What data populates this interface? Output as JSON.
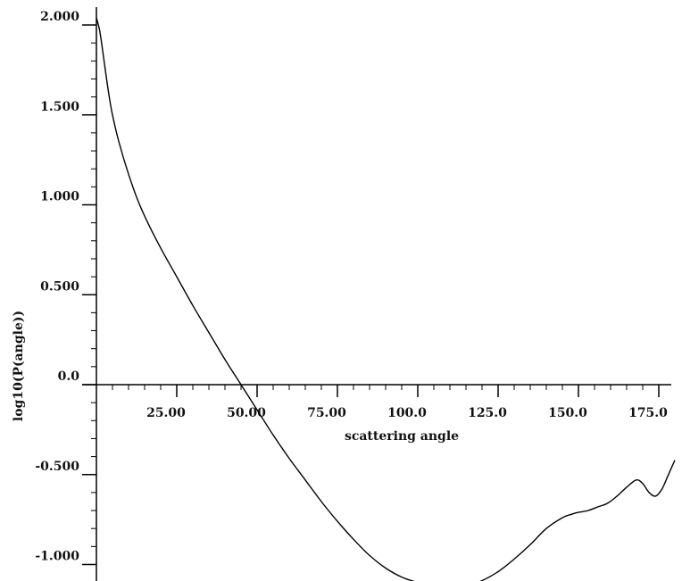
{
  "chart_data": {
    "type": "line",
    "title": "",
    "xlabel": "scattering angle",
    "ylabel": "log10(P(angle))",
    "xlim": [
      0,
      180
    ],
    "ylim": [
      -1.1,
      2.05
    ],
    "xticks": [
      {
        "value": 25,
        "label": "25.00"
      },
      {
        "value": 50,
        "label": "50.00"
      },
      {
        "value": 75,
        "label": "75.00"
      },
      {
        "value": 100,
        "label": "100.0"
      },
      {
        "value": 125,
        "label": "125.0"
      },
      {
        "value": 150,
        "label": "150.0"
      },
      {
        "value": 175,
        "label": "175.0"
      }
    ],
    "yticks": [
      {
        "value": 2.0,
        "label": "2.000"
      },
      {
        "value": 1.5,
        "label": "1.500"
      },
      {
        "value": 1.0,
        "label": "1.000"
      },
      {
        "value": 0.5,
        "label": "0.500"
      },
      {
        "value": 0.0,
        "label": "0.0"
      },
      {
        "value": -0.5,
        "label": "-0.500"
      },
      {
        "value": -1.0,
        "label": "-1.000"
      }
    ],
    "x_minor_step": 5,
    "y_minor_step": 0.1,
    "grid": false,
    "series": [
      {
        "color": "#000000",
        "x": [
          0,
          1,
          2,
          3,
          4,
          5,
          7,
          10,
          13,
          16,
          20,
          25,
          30,
          35,
          40,
          45,
          50,
          55,
          60,
          65,
          70,
          75,
          80,
          85,
          90,
          95,
          100,
          105,
          110,
          115,
          120,
          125,
          130,
          135,
          140,
          145,
          148,
          150,
          153,
          156,
          159,
          162,
          165,
          168,
          170,
          172,
          174,
          176,
          178,
          180
        ],
        "y": [
          2.04,
          1.97,
          1.85,
          1.72,
          1.6,
          1.5,
          1.35,
          1.17,
          1.02,
          0.9,
          0.76,
          0.6,
          0.44,
          0.29,
          0.14,
          0.0,
          -0.14,
          -0.28,
          -0.41,
          -0.53,
          -0.65,
          -0.76,
          -0.86,
          -0.95,
          -1.02,
          -1.07,
          -1.1,
          -1.12,
          -1.13,
          -1.12,
          -1.09,
          -1.04,
          -0.97,
          -0.89,
          -0.8,
          -0.74,
          -0.72,
          -0.71,
          -0.7,
          -0.68,
          -0.66,
          -0.62,
          -0.57,
          -0.53,
          -0.55,
          -0.6,
          -0.62,
          -0.58,
          -0.5,
          -0.42
        ]
      }
    ]
  }
}
